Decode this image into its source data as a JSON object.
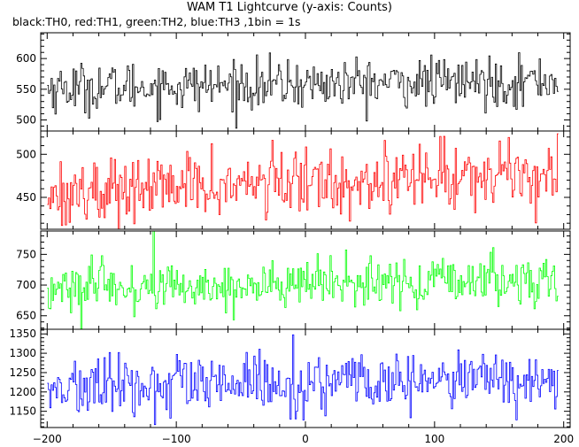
{
  "chart_data": {
    "type": "line",
    "title": "WAM T1 Lightcurve (y-axis: Counts)",
    "subtitle": "black:TH0, red:TH1, green:TH2, blue:TH3 ,1bin = 1s",
    "xlim": [
      -205,
      205
    ],
    "x_ticks": [
      -200,
      -100,
      0,
      100,
      200
    ],
    "x_tick_labels": [
      "−200",
      "−100",
      "0",
      "100",
      "200"
    ],
    "grid": false,
    "panels": [
      {
        "name": "TH0",
        "color": "#000000",
        "ylim": [
          482,
          642
        ],
        "yticks": [
          500,
          550,
          600
        ],
        "mean": 552,
        "sd": 20,
        "trend": 12
      },
      {
        "name": "TH1",
        "color": "#ff0000",
        "ylim": [
          413,
          527
        ],
        "yticks": [
          450,
          500
        ],
        "mean": 455,
        "sd": 19,
        "trend": 25
      },
      {
        "name": "TH2",
        "color": "#00ff00",
        "ylim": [
          628,
          788
        ],
        "yticks": [
          650,
          700,
          750
        ],
        "mean": 693,
        "sd": 21,
        "trend": 15
      },
      {
        "name": "TH3",
        "color": "#0000ff",
        "ylim": [
          1108,
          1362
        ],
        "yticks": [
          1150,
          1200,
          1250,
          1300,
          1350
        ],
        "mean": 1208,
        "sd": 38,
        "trend": 25
      }
    ]
  }
}
